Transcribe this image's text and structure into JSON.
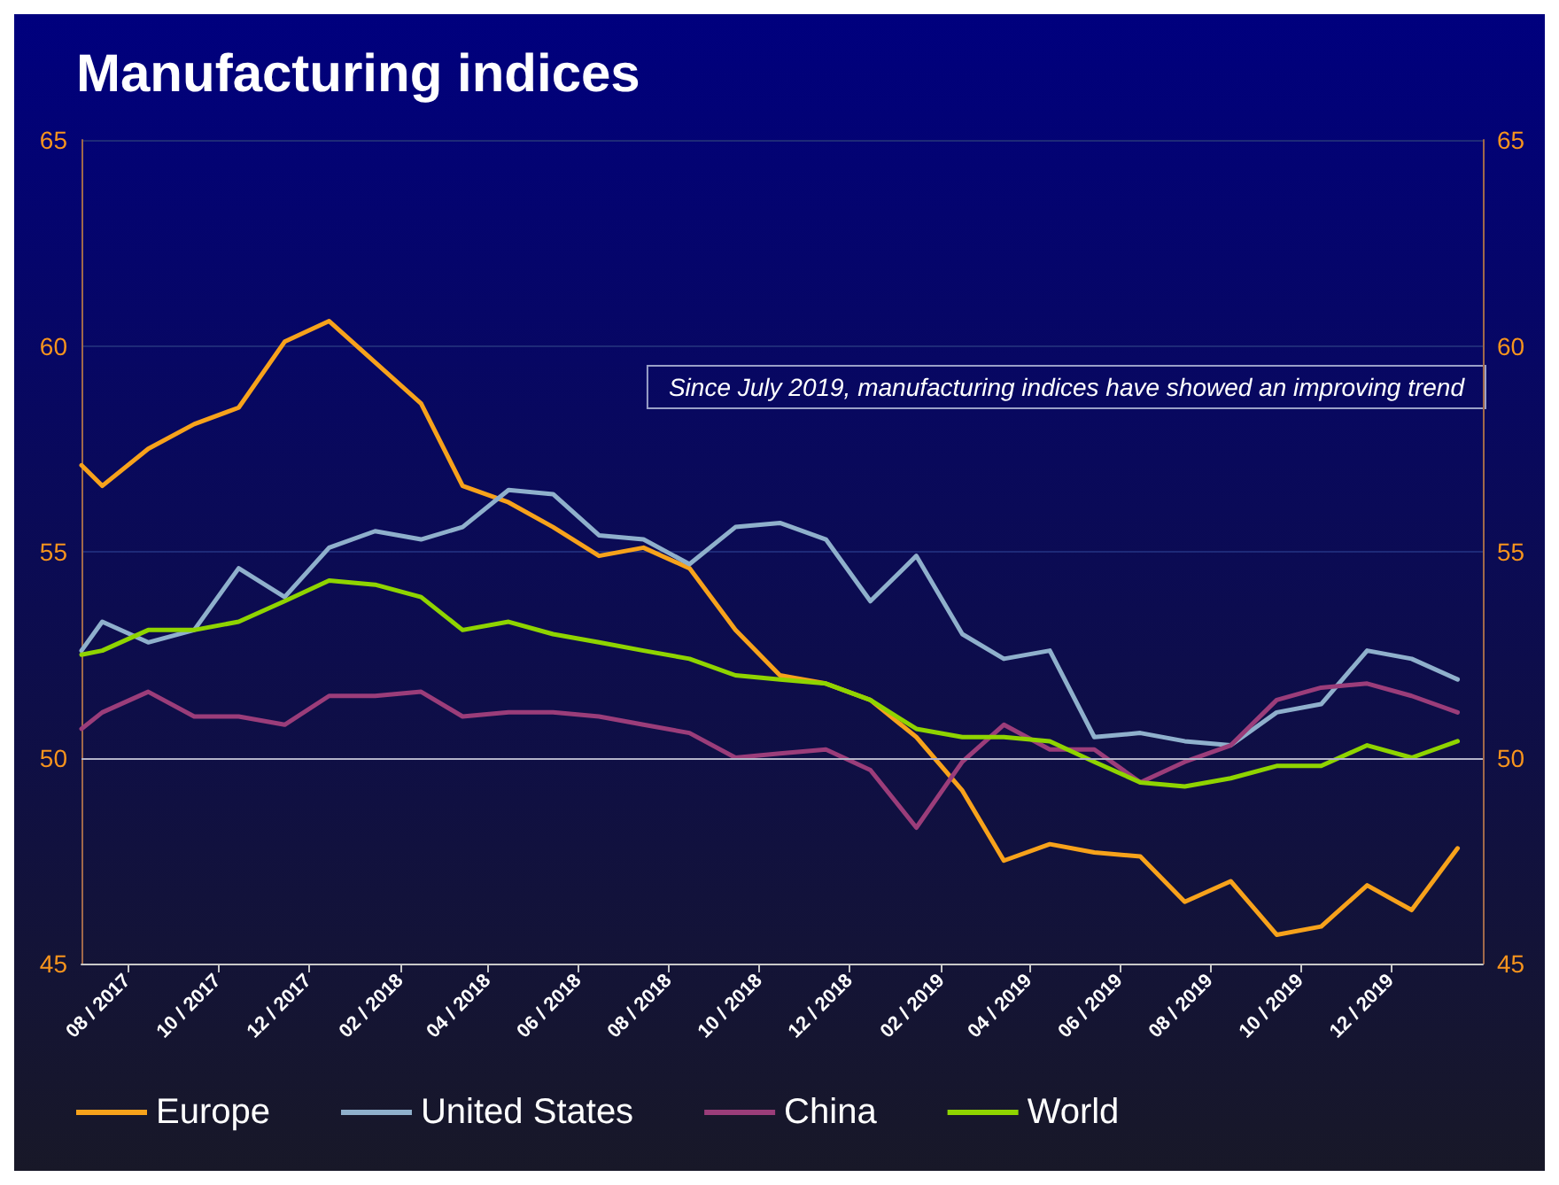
{
  "chart_data": {
    "type": "line",
    "title": "Manufacturing indices",
    "annotations": [
      "Since July 2019, manufacturing indices have showed an improving trend"
    ],
    "x": [
      "2017-07-01",
      "2017-07-15",
      "2017-08-15",
      "2017-09-15",
      "2017-10-15",
      "2017-11-15",
      "2017-12-15",
      "2018-01-15",
      "2018-02-15",
      "2018-03-15",
      "2018-04-15",
      "2018-05-15",
      "2018-06-15",
      "2018-07-15",
      "2018-08-15",
      "2018-09-15",
      "2018-10-15",
      "2018-11-15",
      "2018-12-15",
      "2019-01-15",
      "2019-02-15",
      "2019-03-15",
      "2019-04-15",
      "2019-05-15",
      "2019-06-15",
      "2019-07-15",
      "2019-08-15",
      "2019-09-15",
      "2019-10-15",
      "2019-11-15",
      "2019-12-15",
      "2020-01-15"
    ],
    "series": [
      {
        "name": "Europe",
        "color": "#f7a21b",
        "values": [
          57.1,
          56.6,
          57.5,
          58.1,
          58.5,
          60.1,
          60.6,
          59.6,
          58.6,
          56.6,
          56.2,
          55.6,
          54.9,
          55.1,
          54.6,
          53.1,
          52.0,
          51.8,
          51.4,
          50.5,
          49.2,
          47.5,
          47.9,
          47.7,
          47.6,
          46.5,
          47.0,
          45.7,
          45.9,
          46.9,
          46.3,
          47.8
        ]
      },
      {
        "name": "United States",
        "color": "#8fb0cc",
        "values": [
          52.6,
          53.3,
          52.8,
          53.1,
          54.6,
          53.9,
          55.1,
          55.5,
          55.3,
          55.6,
          56.5,
          56.4,
          55.4,
          55.3,
          54.7,
          55.6,
          55.7,
          55.3,
          53.8,
          54.9,
          53.0,
          52.4,
          52.6,
          50.5,
          50.6,
          50.4,
          50.3,
          51.1,
          51.3,
          52.6,
          52.4,
          51.9
        ]
      },
      {
        "name": "China",
        "color": "#9b3d7a",
        "values": [
          50.7,
          51.1,
          51.6,
          51.0,
          51.0,
          50.8,
          51.5,
          51.5,
          51.6,
          51.0,
          51.1,
          51.1,
          51.0,
          50.8,
          50.6,
          50.0,
          50.1,
          50.2,
          49.7,
          48.3,
          49.9,
          50.8,
          50.2,
          50.2,
          49.4,
          49.9,
          50.3,
          51.4,
          51.7,
          51.8,
          51.5,
          51.1
        ]
      },
      {
        "name": "World",
        "color": "#8fd400",
        "values": [
          52.5,
          52.6,
          53.1,
          53.1,
          53.3,
          53.8,
          54.3,
          54.2,
          53.9,
          53.1,
          53.3,
          53.0,
          52.8,
          52.6,
          52.4,
          52.0,
          51.9,
          51.8,
          51.4,
          50.7,
          50.5,
          50.5,
          50.4,
          49.9,
          49.4,
          49.3,
          49.5,
          49.8,
          49.8,
          50.3,
          50.0,
          50.4
        ]
      }
    ],
    "xlim": [
      "2017-07-01",
      "2020-02-01"
    ],
    "xticks": [
      {
        "value": "2017-08",
        "label": "08 / 2017"
      },
      {
        "value": "2017-10",
        "label": "10 / 2017"
      },
      {
        "value": "2017-12",
        "label": "12 / 2017"
      },
      {
        "value": "2018-02",
        "label": "02 / 2018"
      },
      {
        "value": "2018-04",
        "label": "04 / 2018"
      },
      {
        "value": "2018-06",
        "label": "06 / 2018"
      },
      {
        "value": "2018-08",
        "label": "08 / 2018"
      },
      {
        "value": "2018-10",
        "label": "10 / 2018"
      },
      {
        "value": "2018-12",
        "label": "12 / 2018"
      },
      {
        "value": "2019-02",
        "label": "02 / 2019"
      },
      {
        "value": "2019-04",
        "label": "04 / 2019"
      },
      {
        "value": "2019-06",
        "label": "06 / 2019"
      },
      {
        "value": "2019-08",
        "label": "08 / 2019"
      },
      {
        "value": "2019-10",
        "label": "10 / 2019"
      },
      {
        "value": "2019-12",
        "label": "12 / 2019"
      }
    ],
    "ylim": [
      45,
      65
    ],
    "yticks": [
      45,
      50,
      55,
      60,
      65
    ],
    "y2lim": [
      45,
      65
    ],
    "y2ticks": [
      45,
      50,
      55,
      60,
      65
    ],
    "ref_lines": [
      {
        "axis": "y",
        "value": 50,
        "color": "#b4b4c8"
      }
    ],
    "grid": "y",
    "legend": "bottom",
    "marker": "none",
    "line_style": "solid"
  }
}
